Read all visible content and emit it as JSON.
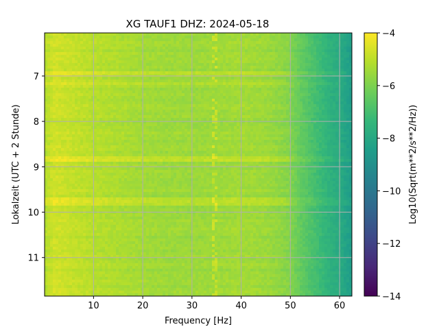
{
  "chart_data": {
    "type": "heatmap",
    "title": "XG TAUF1  DHZ: 2024-05-18",
    "xlabel": "Frequency [Hz]",
    "ylabel": "Lokalzeit (UTC + 2 Stunde)",
    "xlim": [
      0.05,
      62.5
    ],
    "ylim": [
      6.05,
      11.85
    ],
    "y_inverted": true,
    "grid": true,
    "xticks": [
      10,
      20,
      30,
      40,
      50,
      60
    ],
    "xtick_labels": [
      "10",
      "20",
      "30",
      "40",
      "50",
      "60"
    ],
    "yticks": [
      7,
      8,
      9,
      10,
      11
    ],
    "ytick_labels": [
      "7",
      "8",
      "9",
      "10",
      "11"
    ],
    "colormap": "viridis",
    "colorbar": {
      "label": "Log10(Sqrt(m**2/s**2/Hz))",
      "range": [
        -14,
        -4
      ],
      "ticks": [
        -4,
        -6,
        -8,
        -10,
        -12,
        -14
      ],
      "tick_labels": [
        "−4",
        "−6",
        "−8",
        "−10",
        "−12",
        "−14"
      ]
    },
    "spectral_profile": {
      "frequency_hz": [
        0,
        2,
        5,
        10,
        15,
        20,
        25,
        30,
        35,
        40,
        45,
        48,
        50,
        52,
        55,
        58,
        60,
        62.5
      ],
      "level_log10": [
        -5.2,
        -4.7,
        -4.85,
        -5.1,
        -5.25,
        -5.4,
        -5.5,
        -5.5,
        -5.5,
        -5.4,
        -5.5,
        -5.7,
        -5.9,
        -6.4,
        -7.0,
        -7.6,
        -7.9,
        -8.5
      ]
    },
    "high_level_bands": [
      {
        "time": 6.95,
        "width": 0.06,
        "level_boost": 0.55
      },
      {
        "time": 7.15,
        "width": 0.03,
        "level_boost": 0.3
      },
      {
        "time": 8.1,
        "width": 0.02,
        "level_boost": 0.25
      },
      {
        "time": 8.85,
        "width": 0.06,
        "level_boost": 0.55
      },
      {
        "time": 9.75,
        "width": 0.08,
        "level_boost": 0.6
      }
    ],
    "spectral_line": {
      "frequency_hz": 34.5,
      "level_boost": 0.7
    }
  },
  "colors": {
    "viridis": [
      "#440154",
      "#482878",
      "#3e4989",
      "#31688e",
      "#26828e",
      "#1f9e89",
      "#35b779",
      "#6ece58",
      "#b5de2b",
      "#fde725"
    ],
    "grid": "#b0b0b0",
    "axis": "#000000"
  }
}
